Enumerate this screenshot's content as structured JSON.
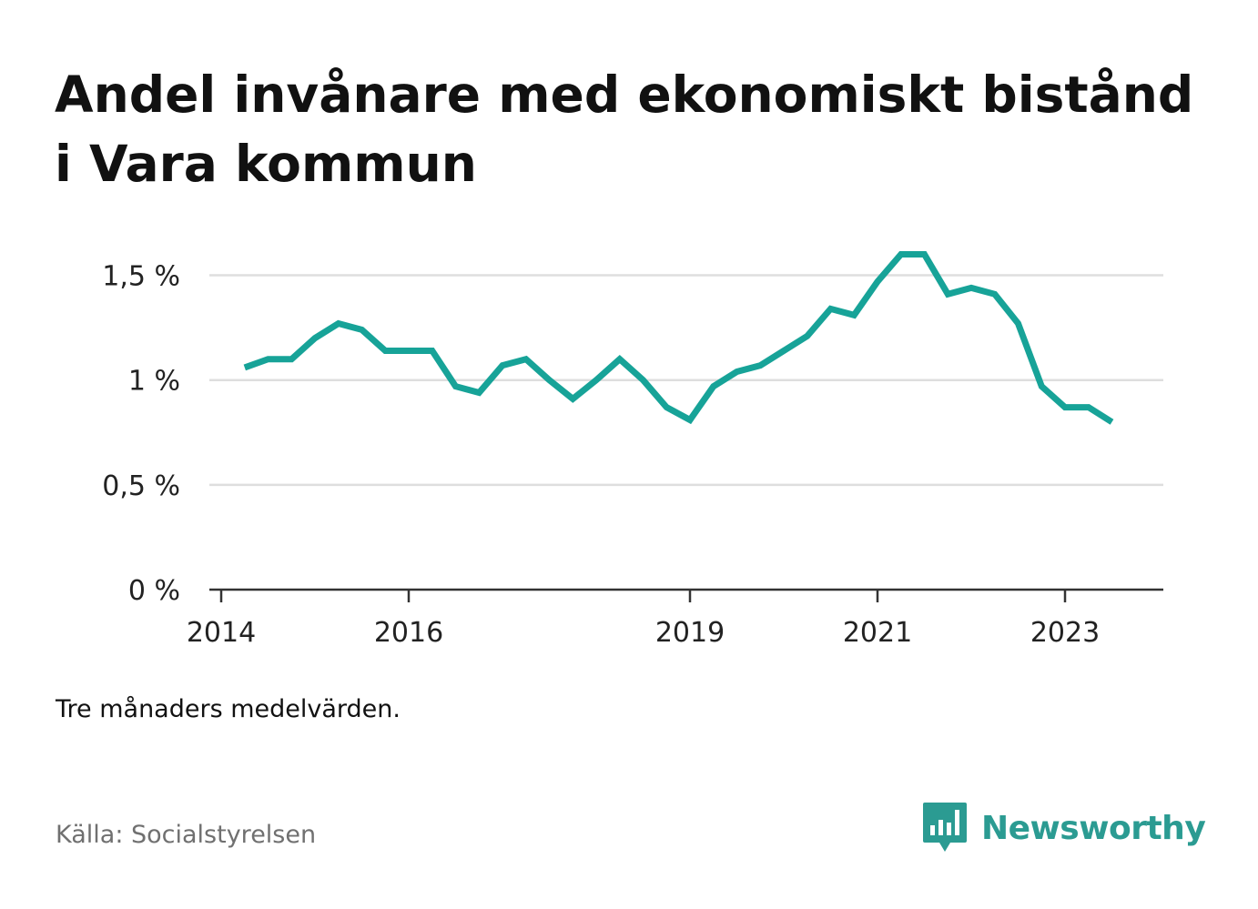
{
  "title": "Andel invånare med ekonomiskt bistånd i Vara kommun",
  "note": "Tre månaders medelvärden.",
  "source": "Källa: Socialstyrelsen",
  "brand": {
    "name": "Newsworthy",
    "icon": "newsworthy-bar-chart-speech-bubble-icon",
    "color": "#2b9b92"
  },
  "chart_data": {
    "type": "line",
    "title": "Andel invånare med ekonomiskt bistånd i Vara kommun",
    "xlabel": "",
    "ylabel": "",
    "x_ticks": [
      "2014",
      "2016",
      "2019",
      "2021",
      "2023"
    ],
    "x_tick_values": [
      2014.0,
      2016.0,
      2019.0,
      2021.0,
      2023.0
    ],
    "y_ticks": [
      "0 %",
      "0,5 %",
      "1 %",
      "1,5 %"
    ],
    "y_tick_values": [
      0,
      0.5,
      1.0,
      1.5
    ],
    "xlim": [
      2014.0,
      2024.25
    ],
    "ylim": [
      0,
      1.65
    ],
    "grid": true,
    "line_color": "#17a398",
    "series": [
      {
        "name": "",
        "x": [
          2014.25,
          2014.5,
          2014.75,
          2015.0,
          2015.25,
          2015.5,
          2015.75,
          2016.0,
          2016.25,
          2016.5,
          2016.75,
          2017.0,
          2017.25,
          2017.5,
          2017.75,
          2018.0,
          2018.25,
          2018.5,
          2018.75,
          2019.0,
          2019.25,
          2019.5,
          2019.75,
          2020.0,
          2020.25,
          2020.5,
          2020.75,
          2021.0,
          2021.25,
          2021.5,
          2021.75,
          2022.0,
          2022.25,
          2022.5,
          2022.75,
          2023.0,
          2023.25,
          2023.5
        ],
        "values": [
          1.06,
          1.1,
          1.1,
          1.2,
          1.27,
          1.24,
          1.14,
          1.14,
          1.14,
          0.97,
          0.94,
          1.07,
          1.1,
          1.0,
          0.91,
          1.0,
          1.1,
          1.0,
          0.87,
          0.81,
          0.97,
          1.04,
          1.07,
          1.14,
          1.21,
          1.34,
          1.31,
          1.47,
          1.6,
          1.6,
          1.41,
          1.44,
          1.41,
          1.27,
          0.97,
          0.87,
          0.87,
          0.8
        ]
      }
    ]
  }
}
